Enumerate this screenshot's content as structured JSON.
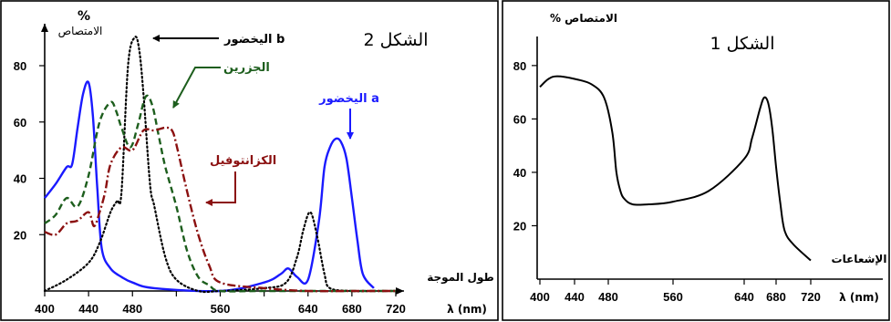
{
  "chart_data": [
    {
      "type": "line",
      "title": "الشكل 2",
      "ylabel": "%\nالامتصاص",
      "xlabel": "طول الموجة",
      "x_unit_label": "λ (nm)",
      "xlim": [
        400,
        720
      ],
      "ylim": [
        0,
        95
      ],
      "x_ticks": [
        400,
        440,
        480,
        520,
        560,
        600,
        640,
        680,
        720
      ],
      "x_tick_labels": [
        "400",
        "440",
        "480",
        "",
        "560",
        "",
        "640",
        "680",
        "720"
      ],
      "y_ticks": [
        20,
        40,
        60,
        80
      ],
      "y_tick_labels": [
        "20",
        "40",
        "60",
        "80"
      ],
      "grid": false,
      "legend": "none",
      "series": [
        {
          "name": "اليخضور a",
          "color": "#1a1aff",
          "style": "solid",
          "x": [
            400,
            410,
            420,
            425,
            430,
            435,
            440,
            444,
            448,
            452,
            460,
            470,
            480,
            500,
            560,
            600,
            615,
            622,
            630,
            640,
            650,
            655,
            660,
            665,
            670,
            675,
            680,
            685,
            690,
            700
          ],
          "y": [
            33,
            38,
            44,
            45,
            58,
            70,
            74,
            62,
            36,
            15,
            8,
            5,
            3,
            1,
            0,
            3,
            6,
            8,
            5,
            4,
            25,
            44,
            51,
            54,
            53,
            47,
            33,
            18,
            6,
            1
          ]
        },
        {
          "name": "اليخضور b",
          "color": "#000000",
          "style": "dotted",
          "x": [
            400,
            420,
            440,
            450,
            460,
            466,
            470,
            476,
            482,
            486,
            490,
            496,
            500,
            510,
            520,
            540,
            560,
            600,
            620,
            630,
            636,
            642,
            648,
            655,
            660,
            680,
            700,
            720
          ],
          "y": [
            0,
            4,
            10,
            17,
            28,
            32,
            35,
            80,
            90,
            86,
            70,
            38,
            30,
            12,
            4,
            0,
            0,
            1,
            3,
            12,
            22,
            28,
            20,
            6,
            1,
            0,
            0,
            0
          ]
        },
        {
          "name": "الجزرين",
          "color": "#1d5e1d",
          "style": "dashed",
          "x": [
            400,
            410,
            420,
            430,
            440,
            450,
            460,
            465,
            470,
            478,
            485,
            492,
            498,
            504,
            510,
            520,
            530,
            540,
            550,
            560,
            600,
            680,
            720
          ],
          "y": [
            24,
            27,
            33,
            30,
            41,
            60,
            67,
            64,
            58,
            51,
            59,
            69,
            66,
            55,
            44,
            30,
            14,
            5,
            2,
            0,
            0,
            0,
            0
          ]
        },
        {
          "name": "الكزانتوفيل",
          "color": "#8b1010",
          "style": "dashdot",
          "x": [
            400,
            410,
            420,
            430,
            440,
            445,
            450,
            455,
            460,
            470,
            480,
            490,
            500,
            510,
            516,
            520,
            530,
            540,
            550,
            560,
            600,
            640,
            680,
            720
          ],
          "y": [
            21,
            20,
            24,
            25,
            28,
            23,
            28,
            35,
            45,
            51,
            50,
            57,
            57,
            58,
            57,
            52,
            35,
            20,
            9,
            3,
            1,
            0,
            0,
            0
          ]
        }
      ],
      "annotations": [
        {
          "text": "اليخضور b",
          "color": "#000000"
        },
        {
          "text": "الجزرين",
          "color": "#1d5e1d"
        },
        {
          "text": "الكزانتوفيل",
          "color": "#8b1010"
        },
        {
          "text": "اليخضور a",
          "color": "#1a1aff"
        }
      ]
    },
    {
      "type": "line",
      "title": "الشكل 1",
      "ylabel": "% الامتصاص",
      "xlabel": "الإشعاعات",
      "x_unit_label": "λ (nm)",
      "xlim": [
        400,
        750
      ],
      "ylim": [
        0,
        95
      ],
      "x_ticks": [
        400,
        440,
        480,
        560,
        640,
        680,
        720
      ],
      "x_tick_labels": [
        "400",
        "440",
        "480",
        "560",
        "640",
        "680",
        "720"
      ],
      "y_ticks": [
        20,
        40,
        60,
        80
      ],
      "y_tick_labels": [
        "20",
        "40",
        "60",
        "80"
      ],
      "grid": false,
      "legend": "none",
      "series": [
        {
          "name": "",
          "color": "#000000",
          "style": "solid",
          "x": [
            400,
            410,
            420,
            440,
            460,
            475,
            485,
            490,
            495,
            500,
            510,
            530,
            560,
            600,
            640,
            650,
            660,
            665,
            670,
            675,
            680,
            685,
            690,
            700,
            720
          ],
          "y": [
            72,
            75,
            76,
            75,
            73,
            68,
            55,
            40,
            33,
            30,
            28,
            28,
            29,
            33,
            45,
            53,
            64,
            68,
            66,
            57,
            42,
            28,
            18,
            13,
            7
          ]
        }
      ]
    }
  ]
}
